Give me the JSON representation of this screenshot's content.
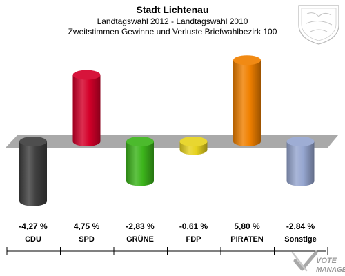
{
  "chart_data": {
    "type": "bar",
    "title": "Stadt Lichtenau",
    "subtitle_1": "Landtagswahl 2012 - Landtagswahl 2010",
    "subtitle_2": "Zweitstimmen Gewinne und Verluste Briefwahlbezirk 100",
    "categories": [
      "CDU",
      "SPD",
      "GRÜNE",
      "FDP",
      "PIRATEN",
      "Sonstige"
    ],
    "values": [
      -4.27,
      4.75,
      -2.83,
      -0.61,
      5.8,
      -2.84
    ],
    "value_labels": [
      "-4,27 %",
      "4,75 %",
      "-2,83 %",
      "-0,61 %",
      "5,80 %",
      "-2,84 %"
    ],
    "colors": [
      "#3f3f3f",
      "#d4002a",
      "#3cb41b",
      "#e6d21e",
      "#f08000",
      "#96a6d0"
    ],
    "ylim": [
      -6,
      6
    ]
  },
  "watermark": {
    "line1": "VOTE",
    "line2": "MANAGER"
  }
}
